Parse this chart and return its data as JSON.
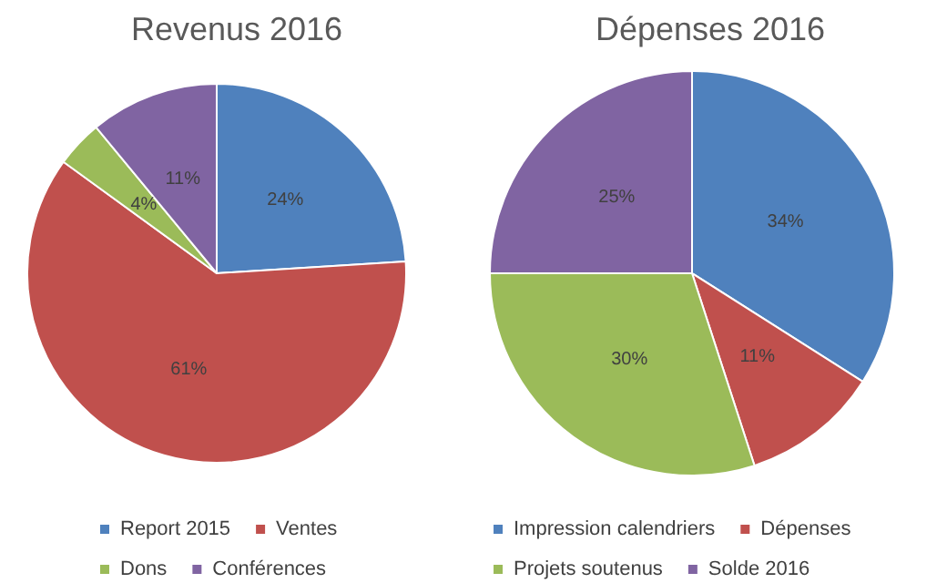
{
  "chart_data": [
    {
      "type": "pie",
      "title": "Revenus 2016",
      "categories": [
        "Report 2015",
        "Ventes",
        "Dons",
        "Conférences"
      ],
      "values": [
        24,
        61,
        4,
        11
      ],
      "value_labels": [
        "24%",
        "61%",
        "4%",
        "11%"
      ],
      "colors": [
        "#4f81bd",
        "#c0504d",
        "#9bbb59",
        "#8064a2"
      ],
      "legend": "bottom"
    },
    {
      "type": "pie",
      "title": "Dépenses 2016",
      "categories": [
        "Impression calendriers",
        "Dépenses",
        "Projets soutenus",
        "Solde 2016"
      ],
      "values": [
        34,
        11,
        30,
        25
      ],
      "value_labels": [
        "34%",
        "11%",
        "30%",
        "25%"
      ],
      "colors": [
        "#4f81bd",
        "#c0504d",
        "#9bbb59",
        "#8064a2"
      ],
      "legend": "bottom"
    }
  ]
}
